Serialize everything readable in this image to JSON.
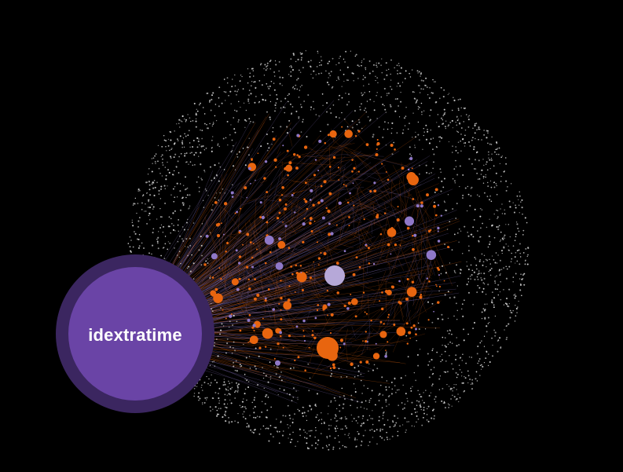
{
  "graph": {
    "colors": {
      "background": "#000000",
      "community_a": "#e8650f",
      "community_b": "#8f78c8",
      "community_c": "#dcdcdc",
      "hub_fill": "#6a44a6",
      "hub_ring": "#3b2660"
    },
    "hub": {
      "label": "idextratime"
    },
    "major_nodes": [
      {
        "label": "",
        "community": "community_a"
      },
      {
        "label": "",
        "community": "community_a"
      },
      {
        "label": "",
        "community": "community_b"
      }
    ]
  }
}
